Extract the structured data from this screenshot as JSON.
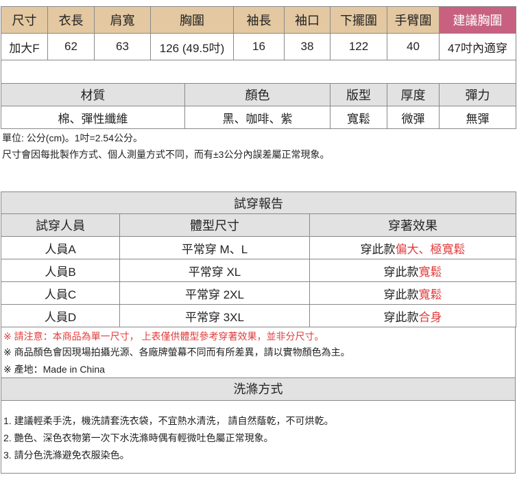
{
  "size_table": {
    "headers": [
      "尺寸",
      "衣長",
      "肩寬",
      "胸圍",
      "袖長",
      "袖口",
      "下擺圍",
      "手臂圍",
      "建議胸圍"
    ],
    "row": [
      "加大F",
      "62",
      "63",
      "126 (49.5吋)",
      "16",
      "38",
      "122",
      "40",
      "47吋內適穿"
    ]
  },
  "fabric_table": {
    "headers": [
      "材質",
      "顏色",
      "版型",
      "厚度",
      "彈力"
    ],
    "row": [
      "棉、彈性纖維",
      "黑、咖啡、紫",
      "寬鬆",
      "微彈",
      "無彈"
    ]
  },
  "notes": [
    "單位: 公分(cm)。1吋=2.54公分。",
    "尺寸會因每批製作方式、個人測量方式不同，而有±3公分內誤差屬正常現象。"
  ],
  "trial": {
    "title": "試穿報告",
    "headers": [
      "試穿人員",
      "體型尺寸",
      "穿著效果"
    ],
    "rows": [
      {
        "person": "人員A",
        "size": "平常穿 M、L",
        "effect_prefix": "穿此款",
        "effect": "偏大、極寬鬆"
      },
      {
        "person": "人員B",
        "size": "平常穿 XL",
        "effect_prefix": "穿此款",
        "effect": "寬鬆"
      },
      {
        "person": "人員C",
        "size": "平常穿 2XL",
        "effect_prefix": "穿此款",
        "effect": "寬鬆"
      },
      {
        "person": "人員D",
        "size": "平常穿 3XL",
        "effect_prefix": "穿此款",
        "effect": "合身"
      }
    ]
  },
  "remarks": [
    "※ 請注意：本商品為單一尺寸， 上表僅供體型參考穿著效果，並非分尺寸。",
    "※ 商品顏色會因現場拍攝光源、各廠牌螢幕不同而有所差異，請以實物顏色為主。",
    "※ 產地：Made in China"
  ],
  "wash": {
    "title": "洗滌方式",
    "items": [
      "1. 建議輕柔手洗，機洗請套洗衣袋，不宜熱水清洗， 請自然蔭乾，不可烘乾。",
      "2. 艷色、深色衣物第一次下水洗滌時偶有輕微吐色屬正常現象。",
      "3. 請分色洗滌避免衣服染色。"
    ]
  },
  "colors": {
    "header_tan": "#E3C8A2",
    "header_pink": "#C7617F",
    "gray": "#E2E2E2",
    "red": "#E23B3B"
  }
}
